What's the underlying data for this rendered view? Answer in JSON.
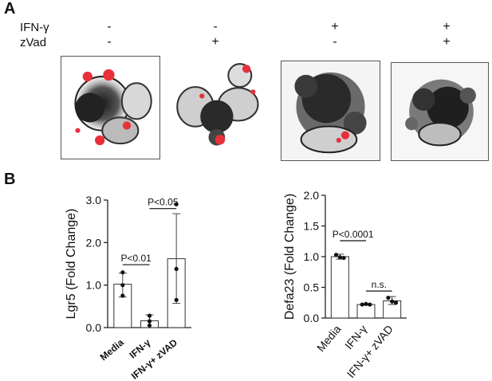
{
  "panel_labels": {
    "a": "A",
    "b": "B"
  },
  "conditions": {
    "rows": [
      {
        "label": "IFN-γ",
        "signs": [
          "-",
          "-",
          "+",
          "+"
        ]
      },
      {
        "label": "zVad",
        "signs": [
          "-",
          "+",
          "-",
          "+"
        ]
      }
    ]
  },
  "colors": {
    "bar_fill": "#ffffff",
    "bar_stroke": "#333333",
    "fluorescence": "#e8303a"
  },
  "chart_data": [
    {
      "type": "bar",
      "ylabel": "Lgr5 (Fold Change)",
      "xlabel": "",
      "ylim": [
        0,
        3.0
      ],
      "yticks": [
        "0.0",
        "1.0",
        "2.0",
        "3.0"
      ],
      "yticks_values": [
        0,
        1,
        2,
        3
      ],
      "categories": [
        "Media",
        "IFN-γ",
        "IFN-γ+ zVAD"
      ],
      "values": [
        1.02,
        0.16,
        1.62
      ],
      "error_low": [
        0.72,
        0.0,
        0.57
      ],
      "error_high": [
        1.28,
        0.3,
        2.68
      ],
      "points": [
        [
          1.3,
          1.0,
          0.75
        ],
        [
          0.28,
          0.15,
          0.05
        ],
        [
          2.9,
          1.38,
          0.65
        ]
      ],
      "annotations": [
        {
          "text": "P<0.01",
          "between": [
            0,
            1
          ],
          "y": 1.48
        },
        {
          "text": "P<0.05",
          "between": [
            1,
            2
          ],
          "y": 2.8
        }
      ]
    },
    {
      "type": "bar",
      "ylabel": "Defa23 (Fold Change)",
      "xlabel": "",
      "ylim": [
        0,
        2.0
      ],
      "yticks": [
        "0.0",
        "0.5",
        "1.0",
        "1.5",
        "2.0"
      ],
      "yticks_values": [
        0,
        0.5,
        1,
        1.5,
        2
      ],
      "categories": [
        "Media",
        "IFN-γ",
        "IFN-γ+ zVAD"
      ],
      "values": [
        1.0,
        0.22,
        0.28
      ],
      "error_low": [
        0.96,
        0.21,
        0.22
      ],
      "error_high": [
        1.04,
        0.23,
        0.35
      ],
      "points": [
        [
          1.03,
          0.98,
          0.99
        ],
        [
          0.22,
          0.22,
          0.23
        ],
        [
          0.33,
          0.25,
          0.27
        ]
      ],
      "annotations": [
        {
          "text": "P<0.0001",
          "between": [
            0,
            1
          ],
          "y": 1.26
        },
        {
          "text": "n.s.",
          "between": [
            1,
            2
          ],
          "y": 0.44
        }
      ]
    }
  ]
}
